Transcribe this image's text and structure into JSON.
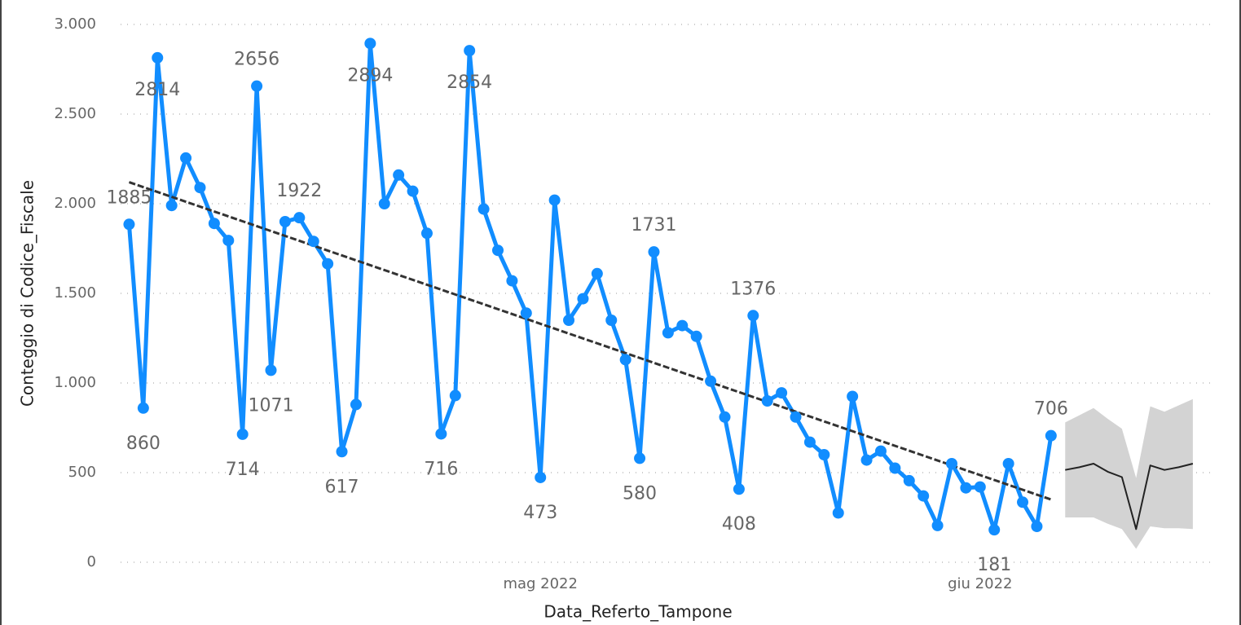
{
  "chart_data": {
    "type": "line",
    "y_label": "Conteggio di Codice_Fiscale",
    "x_label": "Data_Referto_Tampone",
    "xlim": [
      -0.6,
      76.5
    ],
    "xticks": [
      {
        "value": 29,
        "label": "mag 2022"
      },
      {
        "value": 60,
        "label": "giu 2022"
      }
    ],
    "ylim": [
      0,
      3000
    ],
    "yticks": [
      0,
      500,
      {
        "value": 1000,
        "label": "1.000"
      },
      {
        "value": 1500,
        "label": "1.500"
      },
      {
        "value": 2000,
        "label": "2.000"
      },
      {
        "value": 2500,
        "label": "2.500"
      },
      {
        "value": 3000,
        "label": "3.000"
      }
    ],
    "grid": true,
    "series": [
      {
        "color": "#118DFF",
        "x": [
          0,
          1,
          2,
          3,
          4,
          5,
          6,
          7,
          8,
          9,
          10,
          11,
          12,
          13,
          14,
          15,
          16,
          17,
          18,
          19,
          20,
          21,
          22,
          23,
          24,
          25,
          26,
          27,
          28,
          29,
          30,
          31,
          32,
          33,
          34,
          35,
          36,
          37,
          38,
          39,
          40,
          41,
          42,
          43,
          44,
          45,
          46,
          47,
          48,
          49,
          50,
          51,
          52,
          53,
          54,
          55,
          56,
          57,
          58,
          59,
          60,
          61,
          62,
          63,
          64,
          65
        ],
        "values": [
          1885,
          860,
          2814,
          1990,
          2255,
          2090,
          1890,
          1795,
          714,
          2656,
          1071,
          1900,
          1922,
          1790,
          1665,
          617,
          880,
          2894,
          2000,
          2160,
          2070,
          1835,
          716,
          930,
          2854,
          1970,
          1740,
          1570,
          1390,
          473,
          2020,
          1350,
          1470,
          1610,
          1350,
          1130,
          580,
          1731,
          1280,
          1320,
          1260,
          1010,
          810,
          408,
          1376,
          900,
          945,
          810,
          670,
          600,
          275,
          925,
          570,
          620,
          525,
          455,
          370,
          205,
          550,
          415,
          420,
          181,
          550,
          335,
          200,
          706
        ],
        "value_labels": [
          "1885",
          "860",
          "2814",
          null,
          null,
          null,
          null,
          null,
          "714",
          "2656",
          "1071",
          null,
          "1922",
          null,
          null,
          "617",
          null,
          "2894",
          null,
          null,
          null,
          null,
          "716",
          null,
          "2854",
          null,
          null,
          null,
          null,
          "473",
          null,
          null,
          null,
          null,
          null,
          null,
          "580",
          "1731",
          null,
          null,
          null,
          null,
          null,
          "408",
          "1376",
          null,
          null,
          null,
          null,
          null,
          null,
          null,
          null,
          null,
          null,
          null,
          null,
          null,
          null,
          null,
          null,
          "181",
          null,
          null,
          null,
          "706"
        ]
      },
      {
        "color": "#222222",
        "x": [
          66,
          67,
          68,
          69,
          70,
          71,
          72,
          73,
          74,
          75
        ],
        "values": [
          515,
          530,
          550,
          505,
          475,
          185,
          540,
          515,
          530,
          550
        ],
        "upper": [
          780,
          820,
          860,
          800,
          745,
          470,
          870,
          840,
          875,
          910
        ],
        "lower": [
          250,
          250,
          250,
          215,
          185,
          75,
          200,
          190,
          190,
          185
        ],
        "band_color": "#d3d3d3"
      }
    ],
    "trend": {
      "color": "#333333",
      "x": [
        0,
        65
      ],
      "values": [
        2120,
        350
      ]
    }
  }
}
